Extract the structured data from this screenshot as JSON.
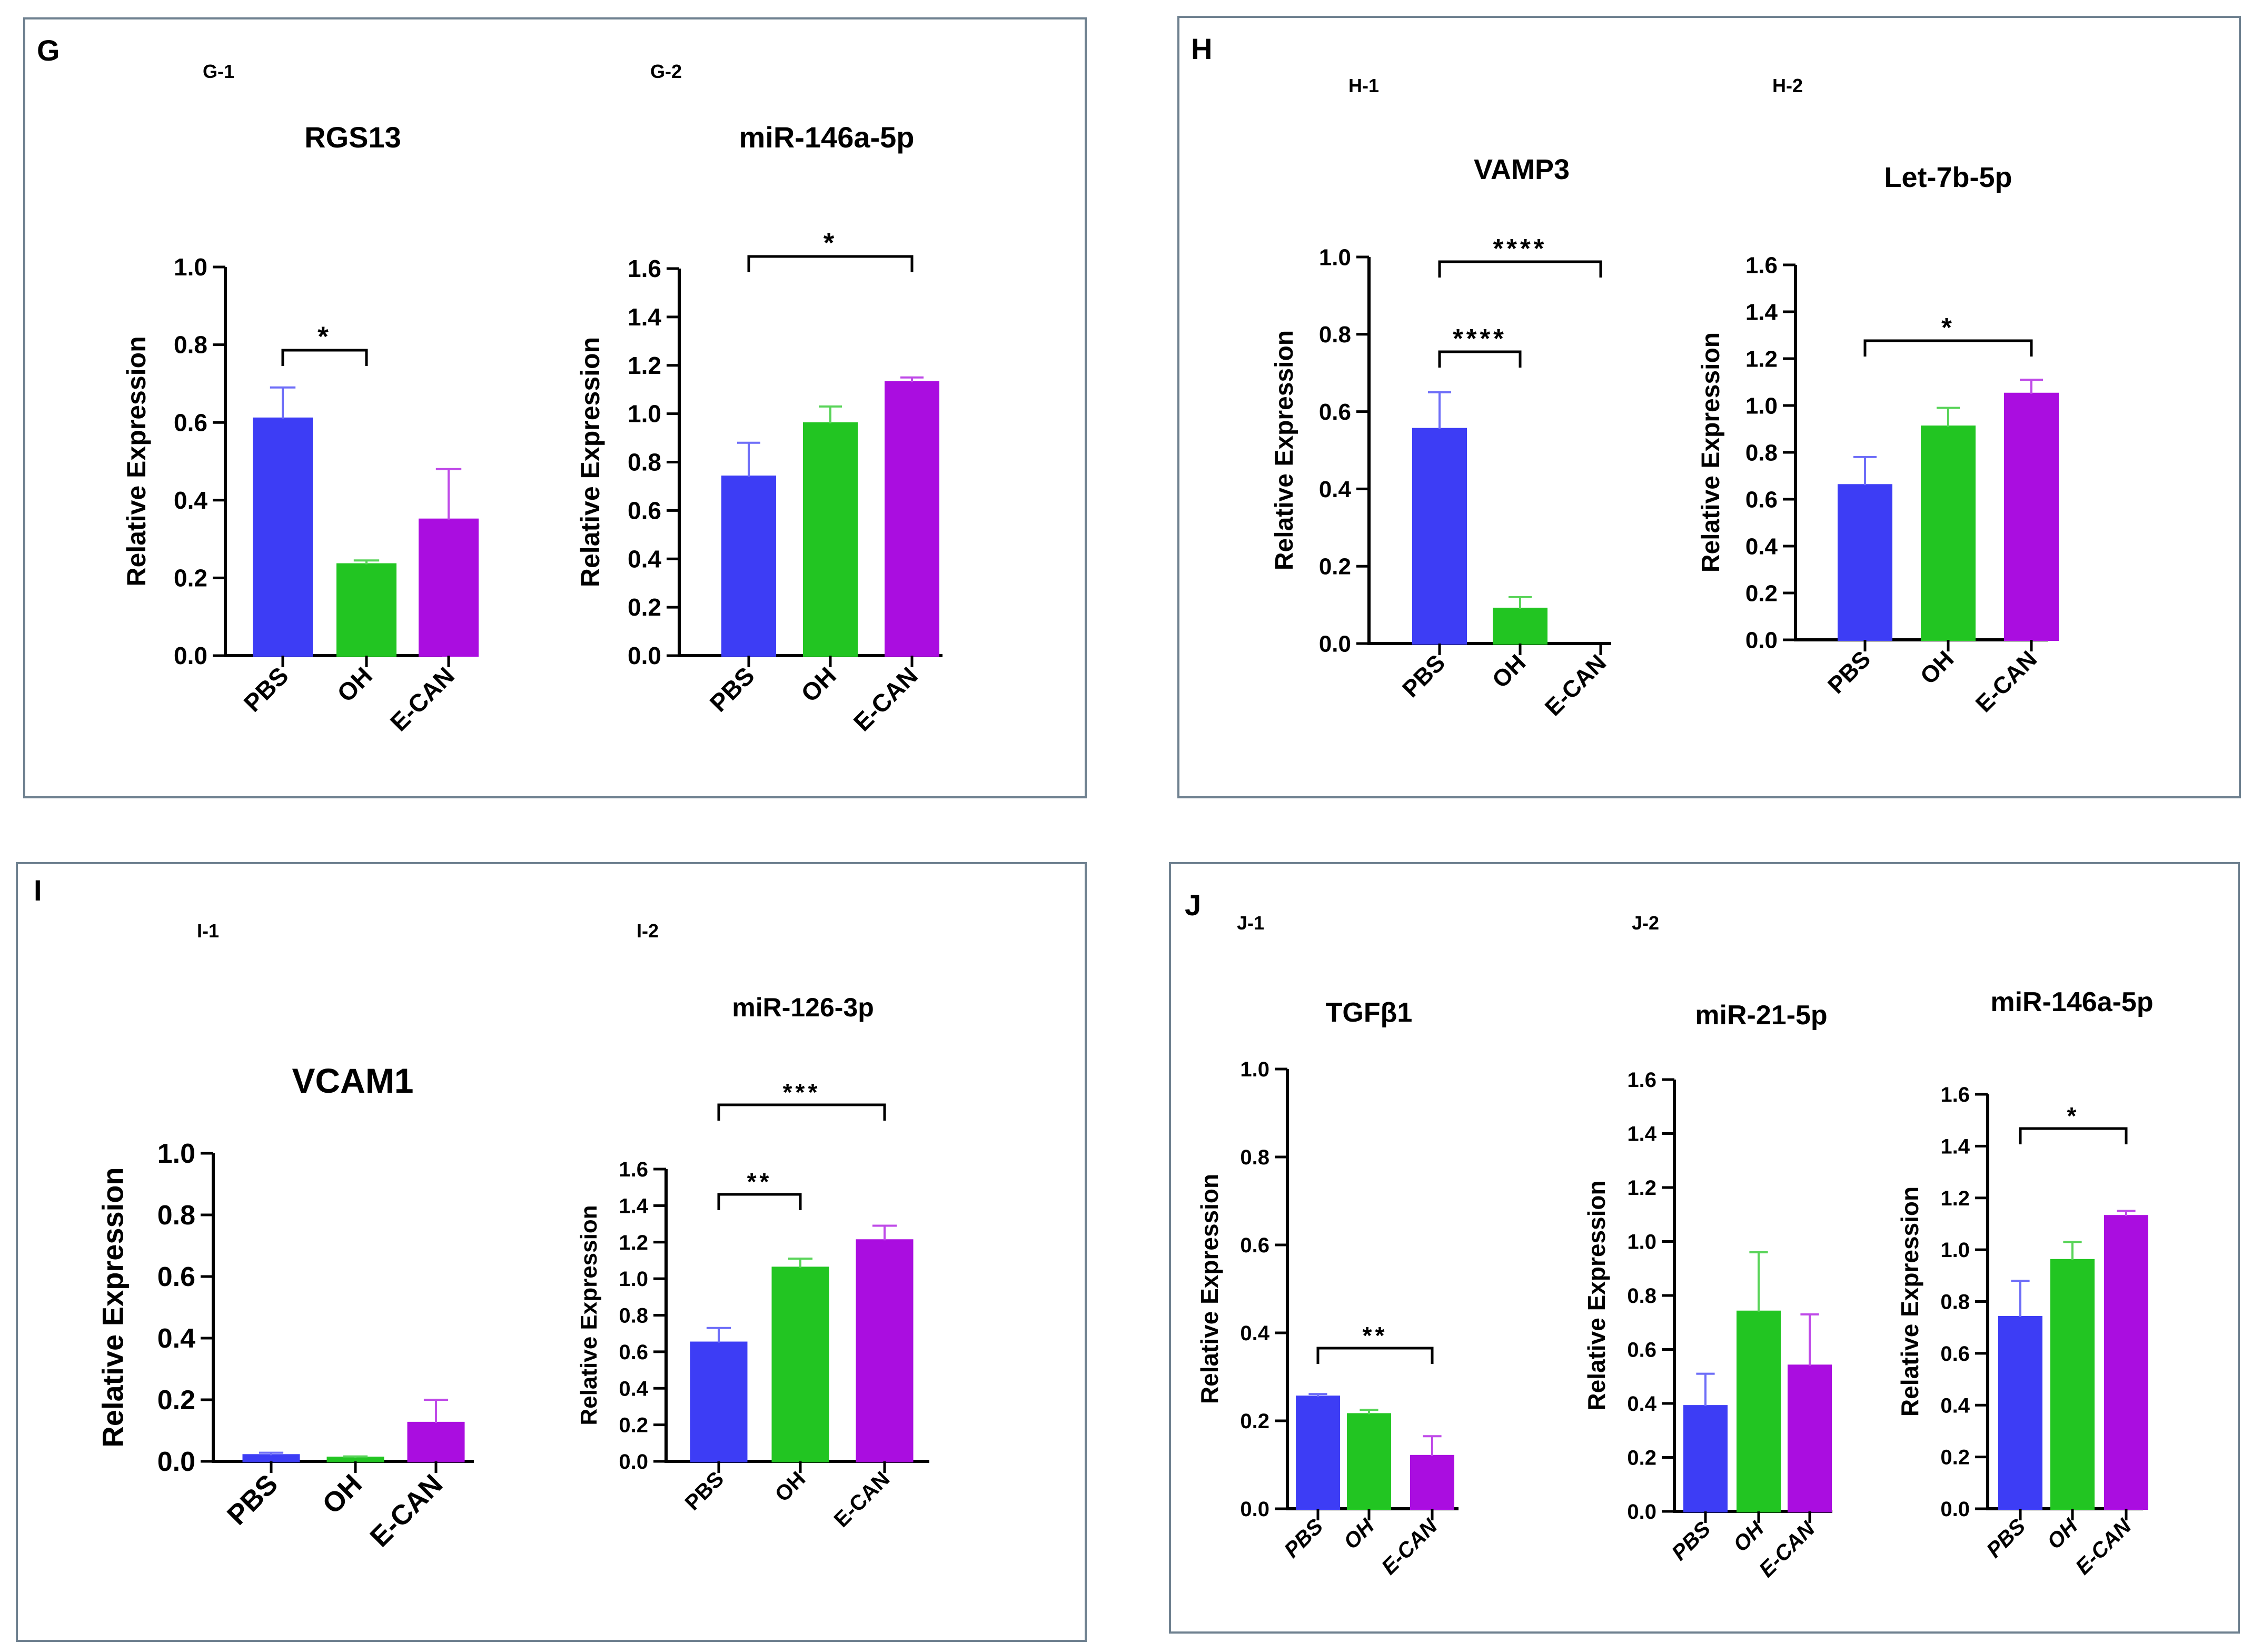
{
  "colors": {
    "PBS": "#3d3df5",
    "OH": "#22c522",
    "E-CAN": "#aa0de0",
    "axis": "#000000"
  },
  "panels": [
    {
      "letter": "G"
    },
    {
      "letter": "H"
    },
    {
      "letter": "I"
    },
    {
      "letter": "J"
    }
  ],
  "chart_data": [
    {
      "id": "G-1",
      "sub": "G-1",
      "title": "RGS13",
      "type": "bar",
      "ylabel": "Relative Expression",
      "categories": [
        "PBS",
        "OH",
        "E-CAN"
      ],
      "values": [
        0.61,
        0.235,
        0.35
      ],
      "errors": [
        0.08,
        0.01,
        0.13
      ],
      "ylim": [
        0,
        1.0
      ],
      "ticks": [
        "0.0",
        "0.2",
        "0.4",
        "0.6",
        "0.8",
        "1.0"
      ],
      "sig": [
        {
          "from": 0,
          "to": 1,
          "label": "*"
        }
      ]
    },
    {
      "id": "G-2",
      "sub": "G-2",
      "title": "miR-146a-5p",
      "type": "bar",
      "ylabel": "Relative Expression",
      "categories": [
        "PBS",
        "OH",
        "E-CAN"
      ],
      "values": [
        0.74,
        0.96,
        1.13
      ],
      "errors": [
        0.14,
        0.07,
        0.02
      ],
      "ylim": [
        0,
        1.6
      ],
      "ticks": [
        "0.0",
        "0.2",
        "0.4",
        "0.6",
        "0.8",
        "1.0",
        "1.2",
        "1.4",
        "1.6"
      ],
      "sig": [
        {
          "from": 0,
          "to": 2,
          "label": "*"
        }
      ]
    },
    {
      "id": "H-1",
      "sub": "H-1",
      "title": "VAMP3",
      "type": "bar",
      "ylabel": "Relative Expression",
      "categories": [
        "PBS",
        "OH",
        "E-CAN"
      ],
      "values": [
        0.555,
        0.09,
        0.0
      ],
      "errors": [
        0.095,
        0.03,
        0.0
      ],
      "ylim": [
        0,
        1.0
      ],
      "ticks": [
        "0.0",
        "0.2",
        "0.4",
        "0.6",
        "0.8",
        "1.0"
      ],
      "sig": [
        {
          "from": 0,
          "to": 1,
          "label": "****"
        },
        {
          "from": 0,
          "to": 2,
          "label": "****"
        }
      ]
    },
    {
      "id": "H-2",
      "sub": "H-2",
      "title": "Let-7b-5p",
      "type": "bar",
      "ylabel": "Relative Expression",
      "categories": [
        "PBS",
        "OH",
        "E-CAN"
      ],
      "values": [
        0.66,
        0.91,
        1.05
      ],
      "errors": [
        0.12,
        0.08,
        0.06
      ],
      "ylim": [
        0,
        1.6
      ],
      "ticks": [
        "0.0",
        "0.2",
        "0.4",
        "0.6",
        "0.8",
        "1.0",
        "1.2",
        "1.4",
        "1.6"
      ],
      "sig": [
        {
          "from": 0,
          "to": 2,
          "label": "*"
        }
      ]
    },
    {
      "id": "I-1",
      "sub": "I-1",
      "title": "VCAM1",
      "type": "bar",
      "ylabel": "Relative Expression",
      "categories": [
        "PBS",
        "OH",
        "E-CAN"
      ],
      "values": [
        0.02,
        0.012,
        0.125
      ],
      "errors": [
        0.008,
        0.004,
        0.075
      ],
      "ylim": [
        0,
        1.0
      ],
      "ticks": [
        "0.0",
        "0.2",
        "0.4",
        "0.6",
        "0.8",
        "1.0"
      ],
      "sig": []
    },
    {
      "id": "I-2",
      "sub": "I-2",
      "title": "miR-126-3p",
      "type": "bar",
      "ylabel": "Relative Expression",
      "categories": [
        "PBS",
        "OH",
        "E-CAN"
      ],
      "values": [
        0.65,
        1.06,
        1.21
      ],
      "errors": [
        0.08,
        0.05,
        0.08
      ],
      "ylim": [
        0,
        1.6
      ],
      "ticks": [
        "0.0",
        "0.2",
        "0.4",
        "0.6",
        "0.8",
        "1.0",
        "1.2",
        "1.4",
        "1.6"
      ],
      "sig": [
        {
          "from": 0,
          "to": 1,
          "label": "**"
        },
        {
          "from": 0,
          "to": 2,
          "label": "***"
        }
      ]
    },
    {
      "id": "J-1",
      "sub": "J-1",
      "title": "TGFβ1",
      "type": "bar",
      "ylabel": "Relative Expression",
      "categories": [
        "PBS",
        "OH",
        "E-CAN"
      ],
      "values": [
        0.255,
        0.215,
        0.12
      ],
      "errors": [
        0.006,
        0.01,
        0.045
      ],
      "ylim": [
        0,
        1.0
      ],
      "ticks": [
        "0.0",
        "0.2",
        "0.4",
        "0.6",
        "0.8",
        "1.0"
      ],
      "sig": [
        {
          "from": 0,
          "to": 2,
          "label": "**"
        }
      ]
    },
    {
      "id": "J-2",
      "sub": "J-2",
      "title": "miR-21-5p",
      "type": "bar",
      "ylabel": "Relative Expression",
      "categories": [
        "PBS",
        "OH",
        "E-CAN"
      ],
      "values": [
        0.39,
        0.74,
        0.54
      ],
      "errors": [
        0.12,
        0.22,
        0.19
      ],
      "ylim": [
        0,
        1.6
      ],
      "ticks": [
        "0.0",
        "0.2",
        "0.4",
        "0.6",
        "0.8",
        "1.0",
        "1.2",
        "1.4",
        "1.6"
      ],
      "sig": []
    },
    {
      "id": "J-3",
      "sub": "",
      "title": "miR-146a-5p",
      "type": "bar",
      "ylabel": "Relative Expression",
      "categories": [
        "PBS",
        "OH",
        "E-CAN"
      ],
      "values": [
        0.74,
        0.96,
        1.13
      ],
      "errors": [
        0.14,
        0.07,
        0.02
      ],
      "ylim": [
        0,
        1.6
      ],
      "ticks": [
        "0.0",
        "0.2",
        "0.4",
        "0.6",
        "0.8",
        "1.0",
        "1.2",
        "1.4",
        "1.6"
      ],
      "sig": [
        {
          "from": 0,
          "to": 2,
          "label": "*"
        }
      ]
    }
  ]
}
